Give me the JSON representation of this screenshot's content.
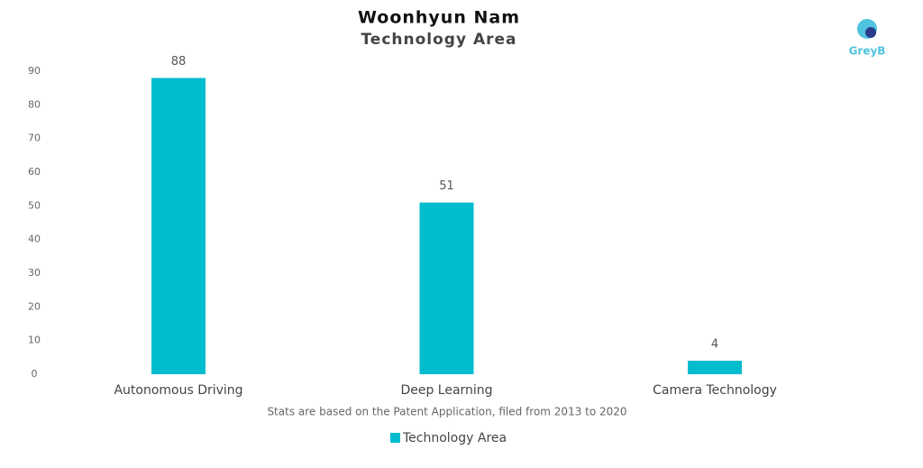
{
  "chart_data": {
    "type": "bar",
    "title": "Woonhyun Nam",
    "subtitle": "Technology Area",
    "categories": [
      "Autonomous Driving",
      "Deep Learning",
      "Camera Technology"
    ],
    "series": [
      {
        "name": "Technology Area",
        "color": "#00bccd",
        "values": [
          88,
          51,
          4
        ]
      }
    ],
    "ylim": [
      0,
      90
    ],
    "yticks": [
      0,
      10,
      20,
      30,
      40,
      50,
      60,
      70,
      80,
      90
    ],
    "grid": false,
    "note": "Stats are based on the Patent Application, filed from 2013 to 2020",
    "legend": "bottom"
  },
  "logo": "GreyB"
}
